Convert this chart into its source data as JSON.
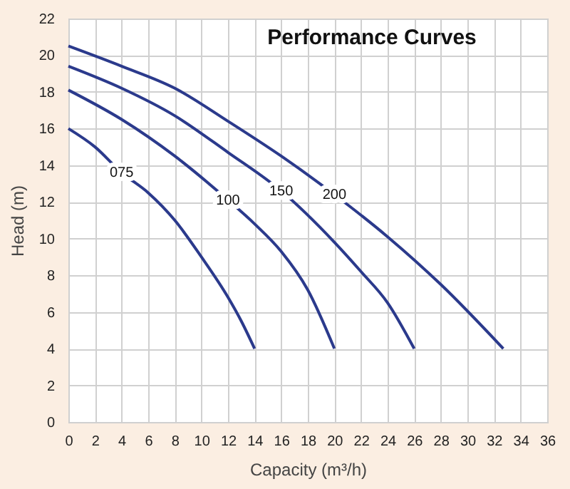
{
  "chart_data": {
    "type": "line",
    "title": "Performance Curves",
    "xlabel": "Capacity (m³/h)",
    "ylabel": "Head (m)",
    "xlim": [
      0,
      36
    ],
    "xticks": [
      0,
      2,
      4,
      6,
      8,
      10,
      12,
      14,
      16,
      18,
      20,
      22,
      24,
      26,
      28,
      30,
      32,
      34,
      36
    ],
    "ylim": [
      0,
      22
    ],
    "yticks": [
      0,
      2,
      4,
      6,
      8,
      10,
      12,
      14,
      16,
      18,
      20,
      22
    ],
    "grid": true,
    "legend": false,
    "marker": "none",
    "line_style": "solid",
    "series": [
      {
        "name": "075",
        "color": "#2b3a8c",
        "x": [
          0,
          2,
          4,
          6,
          8,
          10,
          12,
          13,
          14
        ],
        "values": [
          16,
          15.0,
          13.6,
          12.5,
          11.0,
          9.0,
          6.8,
          5.5,
          4
        ]
      },
      {
        "name": "100",
        "color": "#2b3a8c",
        "x": [
          0,
          4,
          8,
          12,
          14,
          16,
          18,
          20
        ],
        "values": [
          18.1,
          16.5,
          14.5,
          12.1,
          10.8,
          9.3,
          7.2,
          4
        ]
      },
      {
        "name": "150",
        "color": "#2b3a8c",
        "x": [
          0,
          4,
          8,
          12,
          16,
          20,
          22,
          24,
          26
        ],
        "values": [
          19.4,
          18.2,
          16.7,
          14.7,
          12.6,
          9.8,
          8.2,
          6.5,
          4
        ]
      },
      {
        "name": "200",
        "color": "#2b3a8c",
        "x": [
          0,
          4,
          8,
          12,
          16,
          20,
          24,
          28,
          32.7
        ],
        "values": [
          20.5,
          19.4,
          18.2,
          16.4,
          14.5,
          12.4,
          10.1,
          7.5,
          4
        ]
      }
    ]
  }
}
